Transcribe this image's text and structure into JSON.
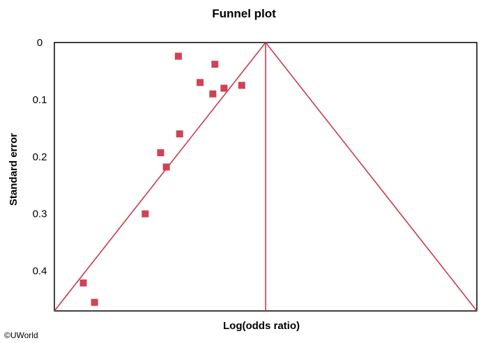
{
  "chart_data": {
    "type": "scatter",
    "title": "Funnel plot",
    "xlabel": "Log(odds ratio)",
    "ylabel": "Standard error",
    "y_inverted": true,
    "ylim": [
      0,
      0.47
    ],
    "yticks": [
      0,
      0.1,
      0.2,
      0.3,
      0.4
    ],
    "ytick_labels": [
      "0",
      "0.1",
      "0.2",
      "0.3",
      "0.4"
    ],
    "xticks": [],
    "grid": false,
    "legend": "none",
    "marker": "square",
    "point_color": "#d04255",
    "line_color": "#c8394d",
    "points": [
      {
        "x": -0.413,
        "y": 0.024
      },
      {
        "x": -0.24,
        "y": 0.038
      },
      {
        "x": -0.31,
        "y": 0.07
      },
      {
        "x": -0.25,
        "y": 0.09
      },
      {
        "x": -0.197,
        "y": 0.08
      },
      {
        "x": -0.113,
        "y": 0.075
      },
      {
        "x": -0.407,
        "y": 0.16
      },
      {
        "x": -0.497,
        "y": 0.193
      },
      {
        "x": -0.47,
        "y": 0.218
      },
      {
        "x": -0.57,
        "y": 0.3
      },
      {
        "x": -0.863,
        "y": 0.421
      },
      {
        "x": -0.81,
        "y": 0.455
      }
    ],
    "funnel": {
      "center_x": 0,
      "apex_y": 0,
      "base_y": 0.47,
      "x_min": -1,
      "x_max": 1
    }
  },
  "copyright": "©UWorld"
}
